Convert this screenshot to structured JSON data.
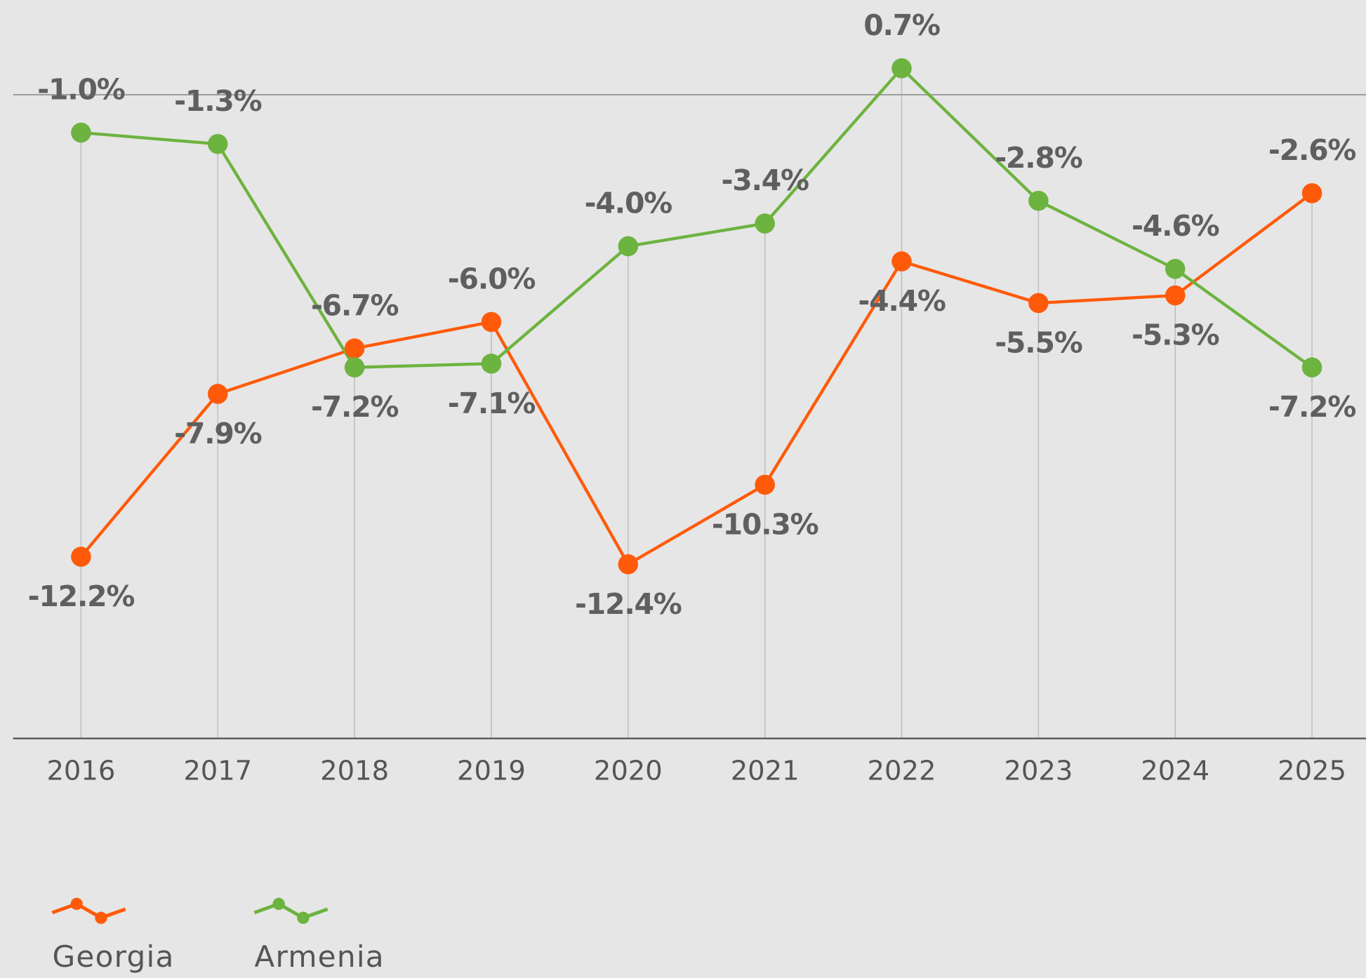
{
  "chart_data": {
    "type": "line",
    "categories": [
      "2016",
      "2017",
      "2018",
      "2019",
      "2020",
      "2021",
      "2022",
      "2023",
      "2024",
      "2025"
    ],
    "series": [
      {
        "name": "Georgia",
        "color": "#ff5a0a",
        "values": [
          -12.2,
          -7.9,
          -6.7,
          -6.0,
          -12.4,
          -10.3,
          -4.4,
          -5.5,
          -5.3,
          -2.6
        ],
        "value_labels": [
          "-12.2%",
          "-7.9%",
          "-6.7%",
          "-6.0%",
          "-12.4%",
          "-10.3%",
          "-4.4%",
          "-5.5%",
          "-5.3%",
          "-2.6%"
        ]
      },
      {
        "name": "Armenia",
        "color": "#6db33f",
        "values": [
          -1.0,
          -1.3,
          -7.2,
          -7.1,
          -4.0,
          -3.4,
          0.7,
          -2.8,
          -4.6,
          -7.2
        ],
        "value_labels": [
          "-1.0%",
          "-1.3%",
          "-7.2%",
          "-7.1%",
          "-4.0%",
          "-3.4%",
          "0.7%",
          "-2.8%",
          "-4.6%",
          "-7.2%"
        ]
      }
    ],
    "ylim": [
      -17,
      2.5
    ]
  }
}
